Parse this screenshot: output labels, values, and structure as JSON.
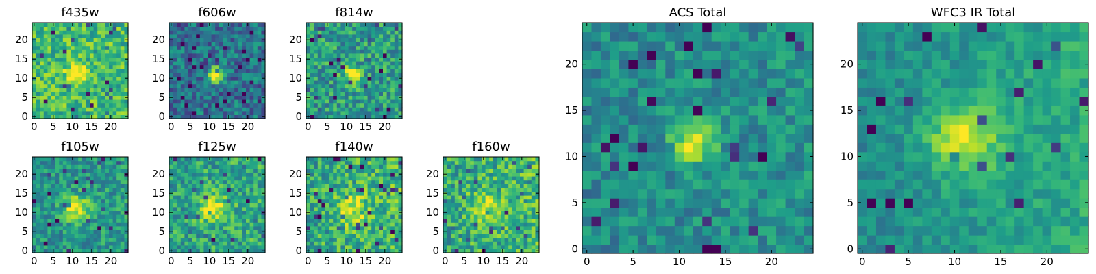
{
  "chart_data": [
    {
      "type": "heatmap",
      "title": "f435w",
      "grid_size": 25,
      "xticks": [
        "0",
        "5",
        "10",
        "15",
        "20"
      ],
      "yticks": [
        "0",
        "5",
        "10",
        "15",
        "20"
      ],
      "xlim": [
        0,
        25
      ],
      "ylim": [
        0,
        25
      ],
      "colormap": "viridis",
      "seed": 11,
      "center": [
        11,
        11.5
      ],
      "peak": 0.55,
      "sigma": 1.6,
      "base": 0.68,
      "noise": 0.42,
      "gradient": 0.0
    },
    {
      "type": "heatmap",
      "title": "f606w",
      "grid_size": 25,
      "xticks": [
        "0",
        "5",
        "10",
        "15",
        "20"
      ],
      "yticks": [
        "0",
        "5",
        "10",
        "15",
        "20"
      ],
      "xlim": [
        0,
        25
      ],
      "ylim": [
        0,
        25
      ],
      "colormap": "viridis",
      "seed": 23,
      "center": [
        11.5,
        11
      ],
      "peak": 0.72,
      "sigma": 1.4,
      "base": 0.38,
      "noise": 0.42,
      "gradient": 0.0
    },
    {
      "type": "heatmap",
      "title": "f814w",
      "grid_size": 25,
      "xticks": [
        "0",
        "5",
        "10",
        "15",
        "20"
      ],
      "yticks": [
        "0",
        "5",
        "10",
        "15",
        "20"
      ],
      "xlim": [
        0,
        25
      ],
      "ylim": [
        0,
        25
      ],
      "colormap": "viridis",
      "seed": 37,
      "center": [
        11.5,
        11
      ],
      "peak": 0.6,
      "sigma": 1.5,
      "base": 0.55,
      "noise": 0.45,
      "gradient": 0.0
    },
    {
      "type": "heatmap",
      "title": "f105w",
      "grid_size": 25,
      "xticks": [
        "0",
        "5",
        "10",
        "15",
        "20"
      ],
      "yticks": [
        "0",
        "5",
        "10",
        "15",
        "20"
      ],
      "xlim": [
        0,
        25
      ],
      "ylim": [
        0,
        25
      ],
      "colormap": "viridis",
      "seed": 41,
      "center": [
        11,
        11
      ],
      "peak": 0.45,
      "sigma": 2.4,
      "base": 0.52,
      "noise": 0.36,
      "gradient": 0.05
    },
    {
      "type": "heatmap",
      "title": "f125w",
      "grid_size": 25,
      "xticks": [
        "0",
        "5",
        "10",
        "15",
        "20"
      ],
      "yticks": [
        "0",
        "5",
        "10",
        "15",
        "20"
      ],
      "xlim": [
        0,
        25
      ],
      "ylim": [
        0,
        25
      ],
      "colormap": "viridis",
      "seed": 53,
      "center": [
        11,
        11
      ],
      "peak": 0.4,
      "sigma": 2.6,
      "base": 0.58,
      "noise": 0.42,
      "gradient": 0.05
    },
    {
      "type": "heatmap",
      "title": "f140w",
      "grid_size": 25,
      "xticks": [
        "0",
        "5",
        "10",
        "15",
        "20"
      ],
      "yticks": [
        "0",
        "5",
        "10",
        "15",
        "20"
      ],
      "xlim": [
        0,
        25
      ],
      "ylim": [
        0,
        25
      ],
      "colormap": "viridis",
      "seed": 67,
      "center": [
        11,
        11
      ],
      "peak": 0.35,
      "sigma": 2.8,
      "base": 0.62,
      "noise": 0.45,
      "gradient": 0.08
    },
    {
      "type": "heatmap",
      "title": "f160w",
      "grid_size": 25,
      "xticks": [
        "0",
        "5",
        "10",
        "15",
        "20"
      ],
      "yticks": [
        "0",
        "5",
        "10",
        "15",
        "20"
      ],
      "xlim": [
        0,
        25
      ],
      "ylim": [
        0,
        25
      ],
      "colormap": "viridis",
      "seed": 79,
      "center": [
        10.5,
        11.5
      ],
      "peak": 0.3,
      "sigma": 2.8,
      "base": 0.62,
      "noise": 0.45,
      "gradient": 0.08
    },
    {
      "type": "heatmap",
      "title": "ACS Total",
      "grid_size": 25,
      "xticks": [
        "0",
        "5",
        "10",
        "15",
        "20"
      ],
      "yticks": [
        "0",
        "5",
        "10",
        "15",
        "20"
      ],
      "xlim": [
        0,
        25
      ],
      "ylim": [
        0,
        25
      ],
      "colormap": "viridis",
      "seed": 97,
      "center": [
        11.5,
        11.5
      ],
      "peak": 0.55,
      "sigma": 1.5,
      "base": 0.48,
      "noise": 0.3,
      "gradient": 0.04
    },
    {
      "type": "heatmap",
      "title": "WFC3 IR Total",
      "grid_size": 25,
      "xticks": [
        "0",
        "5",
        "10",
        "15",
        "20"
      ],
      "yticks": [
        "0",
        "5",
        "10",
        "15",
        "20"
      ],
      "xlim": [
        0,
        25
      ],
      "ylim": [
        0,
        25
      ],
      "colormap": "viridis",
      "seed": 103,
      "center": [
        11,
        12
      ],
      "peak": 0.42,
      "sigma": 2.6,
      "base": 0.52,
      "noise": 0.22,
      "gradient": 0.14
    }
  ]
}
